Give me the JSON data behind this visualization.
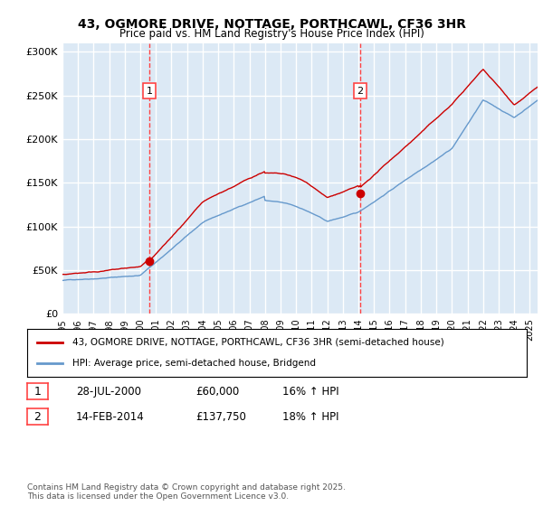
{
  "title": "43, OGMORE DRIVE, NOTTAGE, PORTHCAWL, CF36 3HR",
  "subtitle": "Price paid vs. HM Land Registry's House Price Index (HPI)",
  "x_start": 1995.0,
  "x_end": 2025.5,
  "y_min": 0,
  "y_max": 310000,
  "yticks": [
    0,
    50000,
    100000,
    150000,
    200000,
    250000,
    300000
  ],
  "ytick_labels": [
    "£0",
    "£50K",
    "£100K",
    "£150K",
    "£200K",
    "£250K",
    "£300K"
  ],
  "background_color": "#dce9f5",
  "plot_bg_color": "#dce9f5",
  "grid_color": "#ffffff",
  "red_line_color": "#cc0000",
  "blue_line_color": "#6699cc",
  "sale1_x": 2000.57,
  "sale1_y": 60000,
  "sale2_x": 2014.12,
  "sale2_y": 137750,
  "marker1_label": "1",
  "marker2_label": "2",
  "vline_color": "#ff4444",
  "legend_red_label": "43, OGMORE DRIVE, NOTTAGE, PORTHCAWL, CF36 3HR (semi-detached house)",
  "legend_blue_label": "HPI: Average price, semi-detached house, Bridgend",
  "table_row1": [
    "1",
    "28-JUL-2000",
    "£60,000",
    "16% ↑ HPI"
  ],
  "table_row2": [
    "2",
    "14-FEB-2014",
    "£137,750",
    "18% ↑ HPI"
  ],
  "footer": "Contains HM Land Registry data © Crown copyright and database right 2025.\nThis data is licensed under the Open Government Licence v3.0.",
  "xticks": [
    1995,
    1996,
    1997,
    1998,
    1999,
    2000,
    2001,
    2002,
    2003,
    2004,
    2005,
    2006,
    2007,
    2008,
    2009,
    2010,
    2011,
    2012,
    2013,
    2014,
    2015,
    2016,
    2017,
    2018,
    2019,
    2020,
    2021,
    2022,
    2023,
    2024,
    2025
  ]
}
